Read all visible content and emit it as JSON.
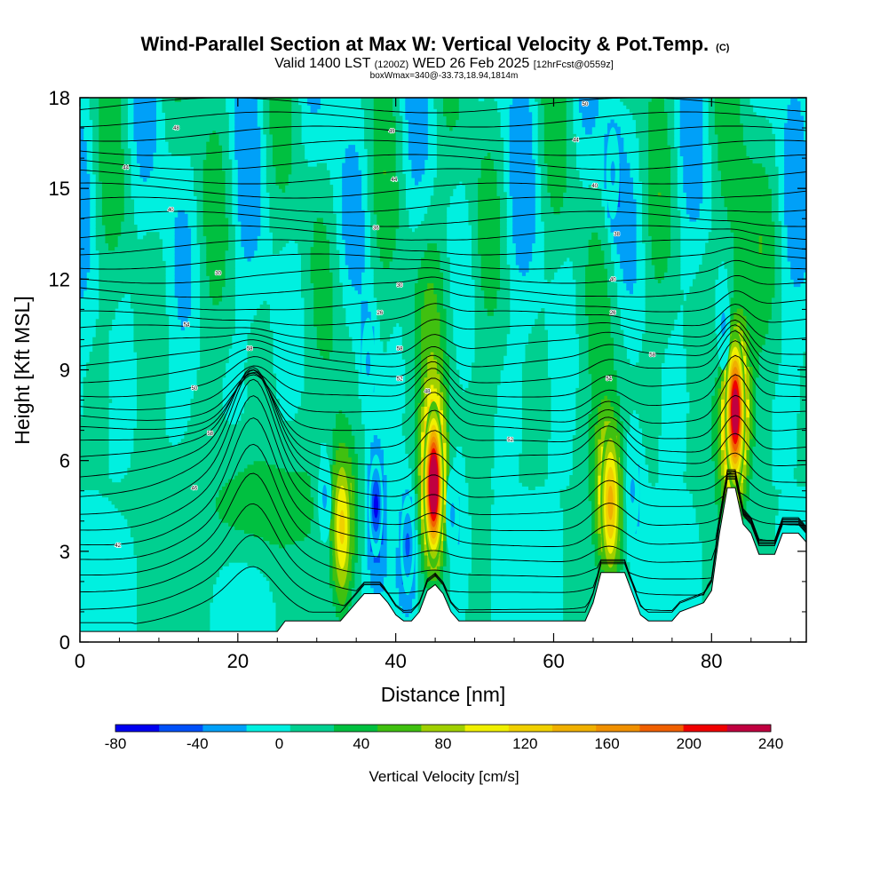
{
  "colors": {
    "background": "#00f0e0",
    "terrain": "#ffffff",
    "contour": "#000000",
    "palette": [
      "#0000f0",
      "#0050f8",
      "#00a0f8",
      "#00f0e0",
      "#00d090",
      "#00c040",
      "#40c010",
      "#a0d000",
      "#f0f000",
      "#f0d000",
      "#f0b000",
      "#f09000",
      "#f06000",
      "#f00000",
      "#c00040"
    ]
  },
  "chart_data": {
    "type": "heatmap",
    "title": "Wind-Parallel Section at Max W: Vertical Velocity & Pot.Temp.",
    "title_mark": "(C)",
    "subtitle": {
      "part1": "Valid 1400 LST",
      "part2": "(1200Z)",
      "part3": "WED 26 Feb 2025",
      "part4": "[12hrFcst@0559z]"
    },
    "subsubtitle": "boxWmax=340@-33.73,18.94,1814m",
    "xlabel": "Distance [nm]",
    "ylabel": "Height [Kft MSL]",
    "xlim": [
      0,
      92
    ],
    "ylim": [
      0,
      18
    ],
    "xticks": [
      0,
      20,
      40,
      60,
      80
    ],
    "yticks": [
      0,
      3,
      6,
      9,
      12,
      15,
      18
    ],
    "colorbar": {
      "title": "Vertical Velocity [cm/s]",
      "min": -80,
      "max": 240,
      "step": 20,
      "labels": [
        -80,
        -40,
        0,
        40,
        80,
        120,
        160,
        200,
        240
      ]
    },
    "terrain_profile": [
      [
        0,
        0.35
      ],
      [
        25,
        0.35
      ],
      [
        26,
        0.7
      ],
      [
        33,
        0.7
      ],
      [
        34,
        1.0
      ],
      [
        35,
        1.3
      ],
      [
        36,
        1.6
      ],
      [
        38,
        1.6
      ],
      [
        39,
        1.3
      ],
      [
        40,
        0.9
      ],
      [
        41,
        0.7
      ],
      [
        42,
        0.7
      ],
      [
        43,
        1.0
      ],
      [
        44,
        1.7
      ],
      [
        45,
        1.9
      ],
      [
        46,
        1.6
      ],
      [
        47,
        1.0
      ],
      [
        48,
        0.7
      ],
      [
        64,
        0.7
      ],
      [
        65,
        1.3
      ],
      [
        66,
        2.3
      ],
      [
        69,
        2.3
      ],
      [
        70,
        1.6
      ],
      [
        71,
        0.9
      ],
      [
        72,
        0.7
      ],
      [
        75,
        0.7
      ],
      [
        76,
        1.0
      ],
      [
        79,
        1.3
      ],
      [
        80,
        1.7
      ],
      [
        81,
        3.6
      ],
      [
        82,
        5.1
      ],
      [
        83,
        5.1
      ],
      [
        84,
        3.9
      ],
      [
        85,
        3.6
      ],
      [
        86,
        2.9
      ],
      [
        88,
        2.9
      ],
      [
        89,
        3.6
      ],
      [
        91,
        3.6
      ],
      [
        92,
        3.3
      ]
    ],
    "updraft_cores": [
      {
        "x": 44.8,
        "z": 5.2,
        "w": 240
      },
      {
        "x": 83.0,
        "z": 7.6,
        "w": 220
      },
      {
        "x": 67.2,
        "z": 4.6,
        "w": 120
      },
      {
        "x": 33.2,
        "z": 3.8,
        "w": 100
      }
    ],
    "downdraft_cores": [
      {
        "x": 37.5,
        "z": 4.5,
        "w": -80
      },
      {
        "x": 41.5,
        "z": 3.2,
        "w": -60
      },
      {
        "x": 31.0,
        "z": 4.8,
        "w": -40
      },
      {
        "x": 36.5,
        "z": 9.2,
        "w": -40
      },
      {
        "x": 47.2,
        "z": 4.2,
        "w": -40
      },
      {
        "x": 70.0,
        "z": 5.0,
        "w": -40
      },
      {
        "x": 81.5,
        "z": 10.5,
        "w": -40
      },
      {
        "x": 67.5,
        "z": 15.5,
        "w": -40
      }
    ],
    "isentrope_labels": [
      {
        "x": 12.2,
        "z": 17.0,
        "text": "48"
      },
      {
        "x": 39.5,
        "z": 16.9,
        "text": "49"
      },
      {
        "x": 64.0,
        "z": 17.8,
        "text": "50"
      },
      {
        "x": 5.8,
        "z": 15.7,
        "text": "44"
      },
      {
        "x": 39.8,
        "z": 15.3,
        "text": "44"
      },
      {
        "x": 62.8,
        "z": 16.6,
        "text": "44"
      },
      {
        "x": 11.5,
        "z": 14.3,
        "text": "40"
      },
      {
        "x": 65.2,
        "z": 15.1,
        "text": "40"
      },
      {
        "x": 37.5,
        "z": 13.7,
        "text": "36"
      },
      {
        "x": 68.0,
        "z": 13.5,
        "text": "38"
      },
      {
        "x": 17.5,
        "z": 12.2,
        "text": "30"
      },
      {
        "x": 40.5,
        "z": 11.8,
        "text": "30"
      },
      {
        "x": 67.5,
        "z": 12.0,
        "text": "40"
      },
      {
        "x": 38.0,
        "z": 10.9,
        "text": "26"
      },
      {
        "x": 67.5,
        "z": 10.9,
        "text": "26"
      },
      {
        "x": 13.5,
        "z": 10.5,
        "text": "54"
      },
      {
        "x": 21.5,
        "z": 9.7,
        "text": "58"
      },
      {
        "x": 40.5,
        "z": 9.7,
        "text": "58"
      },
      {
        "x": 72.5,
        "z": 9.5,
        "text": "58"
      },
      {
        "x": 14.5,
        "z": 8.4,
        "text": "50"
      },
      {
        "x": 40.5,
        "z": 8.7,
        "text": "52"
      },
      {
        "x": 67.0,
        "z": 8.7,
        "text": "54"
      },
      {
        "x": 44.0,
        "z": 8.3,
        "text": "48"
      },
      {
        "x": 16.5,
        "z": 6.9,
        "text": "58"
      },
      {
        "x": 54.5,
        "z": 6.7,
        "text": "52"
      },
      {
        "x": 14.5,
        "z": 5.1,
        "text": "46"
      },
      {
        "x": 4.8,
        "z": 3.2,
        "text": "42"
      }
    ]
  }
}
